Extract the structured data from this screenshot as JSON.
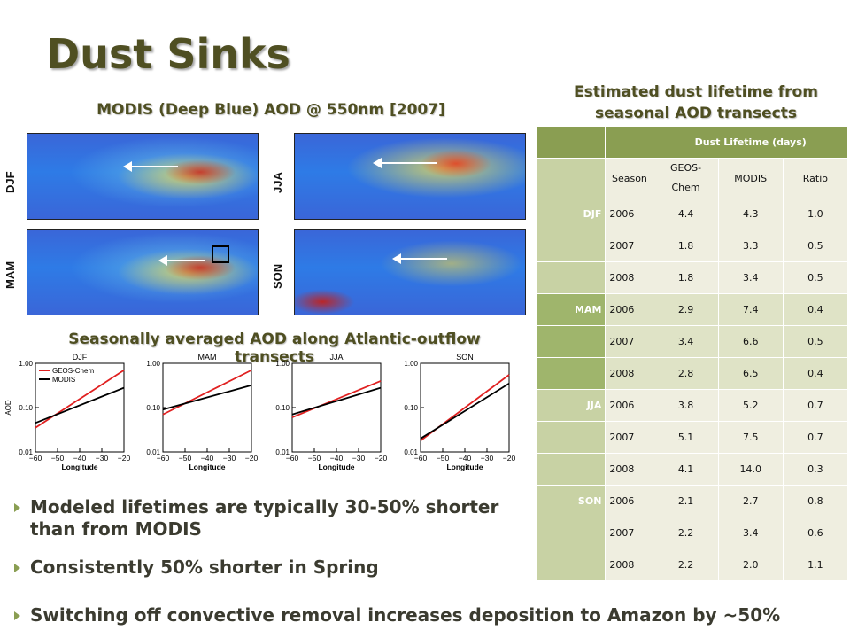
{
  "title": "Dust Sinks",
  "maps_heading": "MODIS (Deep Blue) AOD @ 550nm [2007]",
  "season_labels": [
    "DJF",
    "JJA",
    "MAM",
    "SON"
  ],
  "transects_heading": "Seasonally averaged AOD along Atlantic-outflow transects",
  "lifetime_heading": "Estimated dust lifetime from seasonal AOD transects",
  "table": {
    "group_header": "Dust Lifetime (days)",
    "columns": [
      "Season",
      "GEOS-Chem",
      "MODIS",
      "Ratio"
    ],
    "rows": [
      {
        "season": "DJF",
        "year": "2006",
        "geos": "4.4",
        "modis": "4.3",
        "ratio": "1.0"
      },
      {
        "season": "",
        "year": "2007",
        "geos": "1.8",
        "modis": "3.3",
        "ratio": "0.5"
      },
      {
        "season": "",
        "year": "2008",
        "geos": "1.8",
        "modis": "3.4",
        "ratio": "0.5"
      },
      {
        "season": "MAM",
        "year": "2006",
        "geos": "2.9",
        "modis": "7.4",
        "ratio": "0.4"
      },
      {
        "season": "",
        "year": "2007",
        "geos": "3.4",
        "modis": "6.6",
        "ratio": "0.5"
      },
      {
        "season": "",
        "year": "2008",
        "geos": "2.8",
        "modis": "6.5",
        "ratio": "0.4"
      },
      {
        "season": "JJA",
        "year": "2006",
        "geos": "3.8",
        "modis": "5.2",
        "ratio": "0.7"
      },
      {
        "season": "",
        "year": "2007",
        "geos": "5.1",
        "modis": "7.5",
        "ratio": "0.7"
      },
      {
        "season": "",
        "year": "2008",
        "geos": "4.1",
        "modis": "14.0",
        "ratio": "0.3"
      },
      {
        "season": "SON",
        "year": "2006",
        "geos": "2.1",
        "modis": "2.7",
        "ratio": "0.8"
      },
      {
        "season": "",
        "year": "2007",
        "geos": "2.2",
        "modis": "3.4",
        "ratio": "0.6"
      },
      {
        "season": "",
        "year": "2008",
        "geos": "2.2",
        "modis": "2.0",
        "ratio": "1.1"
      }
    ]
  },
  "bullets": [
    "Modeled lifetimes are typically 30-50% shorter than from MODIS",
    "Consistently 50% shorter in Spring",
    "Switching off convective removal increases deposition to Amazon by ~50%"
  ],
  "chart_data": [
    {
      "type": "line",
      "title": "DJF",
      "xlabel": "Longitude",
      "ylabel": "AOD",
      "xlim": [
        -60,
        -20
      ],
      "ylim": [
        0.01,
        1.0
      ],
      "yscale": "log",
      "x_ticks": [
        "−60",
        "−50",
        "−40",
        "−30",
        "−20"
      ],
      "y_ticks": [
        "0.01",
        "0.10",
        "1.00"
      ],
      "legend": [
        "GEOS-Chem",
        "MODIS"
      ],
      "legend_position": "top-left",
      "series": [
        {
          "name": "GEOS-Chem",
          "color": "#e02020",
          "x": [
            -60,
            -20
          ],
          "y": [
            0.035,
            0.7
          ]
        },
        {
          "name": "MODIS",
          "color": "#000000",
          "x": [
            -60,
            -20
          ],
          "y": [
            0.045,
            0.28
          ]
        }
      ]
    },
    {
      "type": "line",
      "title": "MAM",
      "xlabel": "Longitude",
      "ylabel": "",
      "xlim": [
        -60,
        -20
      ],
      "ylim": [
        0.01,
        1.0
      ],
      "yscale": "log",
      "x_ticks": [
        "−60",
        "−50",
        "−40",
        "−30",
        "−20"
      ],
      "y_ticks": [
        "0.01",
        "0.10",
        "1.00"
      ],
      "series": [
        {
          "name": "GEOS-Chem",
          "color": "#e02020",
          "x": [
            -60,
            -20
          ],
          "y": [
            0.07,
            0.7
          ]
        },
        {
          "name": "MODIS",
          "color": "#000000",
          "x": [
            -60,
            -20
          ],
          "y": [
            0.09,
            0.32
          ]
        }
      ]
    },
    {
      "type": "line",
      "title": "JJA",
      "xlabel": "Longitude",
      "ylabel": "",
      "xlim": [
        -60,
        -20
      ],
      "ylim": [
        0.01,
        1.0
      ],
      "yscale": "log",
      "x_ticks": [
        "−60",
        "−50",
        "−40",
        "−30",
        "−20"
      ],
      "y_ticks": [
        "0.01",
        "0.10",
        "1.00"
      ],
      "series": [
        {
          "name": "GEOS-Chem",
          "color": "#e02020",
          "x": [
            -60,
            -20
          ],
          "y": [
            0.06,
            0.4
          ]
        },
        {
          "name": "MODIS",
          "color": "#000000",
          "x": [
            -60,
            -20
          ],
          "y": [
            0.07,
            0.28
          ]
        }
      ]
    },
    {
      "type": "line",
      "title": "SON",
      "xlabel": "Longitude",
      "ylabel": "",
      "xlim": [
        -60,
        -20
      ],
      "ylim": [
        0.01,
        1.0
      ],
      "yscale": "log",
      "x_ticks": [
        "−60",
        "−50",
        "−40",
        "−30",
        "−20"
      ],
      "y_ticks": [
        "0.01",
        "0.10",
        "1.00"
      ],
      "series": [
        {
          "name": "GEOS-Chem",
          "color": "#e02020",
          "x": [
            -60,
            -20
          ],
          "y": [
            0.018,
            0.55
          ]
        },
        {
          "name": "MODIS",
          "color": "#000000",
          "x": [
            -60,
            -20
          ],
          "y": [
            0.02,
            0.35
          ]
        }
      ]
    }
  ]
}
